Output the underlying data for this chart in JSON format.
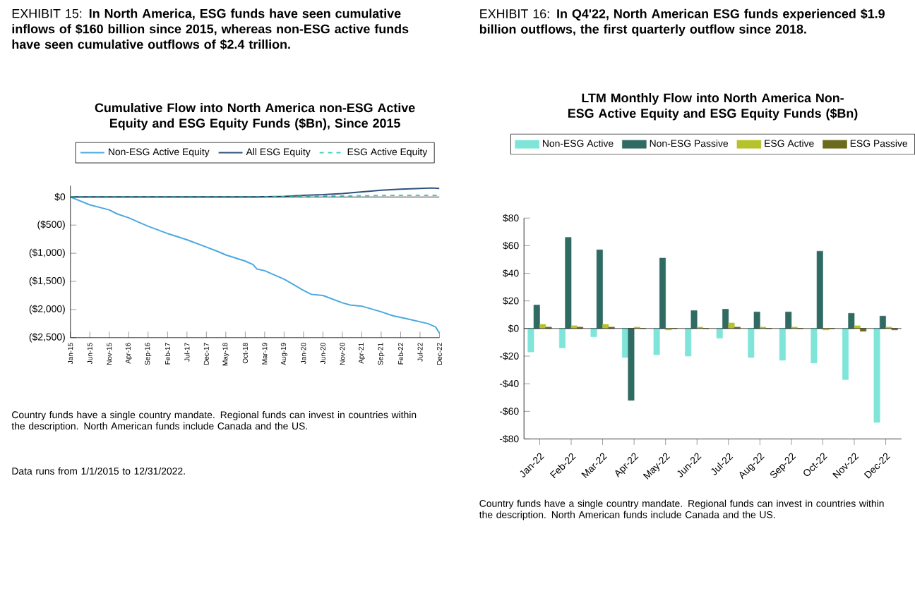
{
  "chart_data": [
    {
      "type": "line",
      "title": "EXHIBIT 15: **In North America, ESG funds have seen cumulative inflows of $160 billion since 2015, whereas non-ESG active funds have seen cumulative outflows of $2.4 trillion.**",
      "subtitle": "Cumulative Flow into North America non-ESG Active Equity and ESG Equity Funds ($Bn), Since 2015",
      "xlim": [
        "2015-01",
        "2022-12"
      ],
      "xticks": [
        {
          "value": "2015-01",
          "label": "Jan-15"
        },
        {
          "value": "2015-06",
          "label": "Jun-15"
        },
        {
          "value": "2015-11",
          "label": "Nov-15"
        },
        {
          "value": "2016-04",
          "label": "Apr-16"
        },
        {
          "value": "2016-09",
          "label": "Sep-16"
        },
        {
          "value": "2017-02",
          "label": "Feb-17"
        },
        {
          "value": "2017-07",
          "label": "Jul-17"
        },
        {
          "value": "2017-12",
          "label": "Dec-17"
        },
        {
          "value": "2018-05",
          "label": "May-18"
        },
        {
          "value": "2018-10",
          "label": "Oct-18"
        },
        {
          "value": "2019-03",
          "label": "Mar-19"
        },
        {
          "value": "2019-08",
          "label": "Aug-19"
        },
        {
          "value": "2020-01",
          "label": "Jan-20"
        },
        {
          "value": "2020-06",
          "label": "Jun-20"
        },
        {
          "value": "2020-11",
          "label": "Nov-20"
        },
        {
          "value": "2021-04",
          "label": "Apr-21"
        },
        {
          "value": "2021-09",
          "label": "Sep-21"
        },
        {
          "value": "2022-02",
          "label": "Feb-22"
        },
        {
          "value": "2022-07",
          "label": "Jul-22"
        },
        {
          "value": "2022-12",
          "label": "Dec-22"
        }
      ],
      "ylim": [
        -2500,
        200
      ],
      "yticks": [
        {
          "value": 0,
          "label": "$0"
        },
        {
          "value": -500,
          "label": "($500)"
        },
        {
          "value": -1000,
          "label": "($1,000)"
        },
        {
          "value": -1500,
          "label": "($1,500)"
        },
        {
          "value": -2000,
          "label": "($2,000)"
        },
        {
          "value": -2500,
          "label": "($2,500)"
        }
      ],
      "legend": "top",
      "ref_lines": [
        {
          "axis": "y",
          "value": 0
        }
      ],
      "series": [
        {
          "name": "Non-ESG Active Equity",
          "color": "#4aa8e0",
          "line_style": "solid",
          "x": [
            "2015-01",
            "2015-06",
            "2015-11",
            "2016-01",
            "2016-04",
            "2016-09",
            "2017-02",
            "2017-07",
            "2017-12",
            "2018-03",
            "2018-05",
            "2018-10",
            "2018-12",
            "2019-01",
            "2019-03",
            "2019-08",
            "2019-10",
            "2020-01",
            "2020-03",
            "2020-06",
            "2020-11",
            "2021-01",
            "2021-04",
            "2021-09",
            "2021-12",
            "2022-04",
            "2022-09",
            "2022-11",
            "2022-12"
          ],
          "values": [
            0,
            -140,
            -230,
            -300,
            -370,
            -520,
            -650,
            -760,
            -890,
            -970,
            -1030,
            -1140,
            -1200,
            -1280,
            -1310,
            -1460,
            -1540,
            -1660,
            -1730,
            -1750,
            -1880,
            -1920,
            -1940,
            -2040,
            -2110,
            -2170,
            -2250,
            -2310,
            -2420
          ]
        },
        {
          "name": "All ESG Equity",
          "color": "#2f4f7f",
          "line_style": "solid",
          "x": [
            "2015-01",
            "2019-01",
            "2019-08",
            "2020-01",
            "2020-06",
            "2020-11",
            "2021-04",
            "2021-09",
            "2022-02",
            "2022-07",
            "2022-10",
            "2022-12"
          ],
          "values": [
            0,
            0,
            10,
            30,
            40,
            60,
            90,
            120,
            140,
            150,
            160,
            150
          ]
        },
        {
          "name": "ESG Active Equity",
          "color": "#3fd0c0",
          "line_style": "dashed",
          "x": [
            "2015-01",
            "2019-01",
            "2020-01",
            "2021-01",
            "2022-01",
            "2022-12"
          ],
          "values": [
            0,
            0,
            10,
            20,
            30,
            30
          ]
        }
      ],
      "annotations": [
        "Country funds have a single country mandate. Regional funds can invest in countries within the description. North American funds include Canada and the US.",
        "Data runs from 1/1/2015 to 12/31/2022."
      ]
    },
    {
      "type": "bar",
      "title": "EXHIBIT 16: **In Q4'22, North American ESG funds experienced $1.9 billion outflows, the first quarterly outflow since 2018.**",
      "subtitle": "LTM Monthly Flow into North America Non-ESG Active Equity and ESG Equity Funds ($Bn)",
      "categories": [
        "Jan-22",
        "Feb-22",
        "Mar-22",
        "Apr-22",
        "May-22",
        "Jun-22",
        "Jul-22",
        "Aug-22",
        "Sep-22",
        "Oct-22",
        "Nov-22",
        "Dec-22"
      ],
      "ylim": [
        -80,
        80
      ],
      "yticks": [
        {
          "value": -80,
          "label": "-$80"
        },
        {
          "value": -60,
          "label": "-$60"
        },
        {
          "value": -40,
          "label": "-$40"
        },
        {
          "value": -20,
          "label": "-$20"
        },
        {
          "value": 0,
          "label": "$0"
        },
        {
          "value": 20,
          "label": "$20"
        },
        {
          "value": 40,
          "label": "$40"
        },
        {
          "value": 60,
          "label": "$60"
        },
        {
          "value": 80,
          "label": "$80"
        }
      ],
      "legend": "top",
      "ref_lines": [
        {
          "axis": "y",
          "value": 0
        }
      ],
      "series": [
        {
          "name": "Non-ESG Active",
          "color": "#7fe5d8",
          "values": [
            -17,
            -14,
            -6,
            -21,
            -19,
            -20,
            -7,
            -21,
            -23,
            -25,
            -37,
            -68
          ]
        },
        {
          "name": "Non-ESG Passive",
          "color": "#2f6b62",
          "values": [
            17,
            66,
            57,
            -52,
            51,
            13,
            14,
            12,
            12,
            56,
            11,
            9
          ]
        },
        {
          "name": "ESG Active",
          "color": "#b5c22a",
          "values": [
            3,
            2,
            3,
            1,
            -1,
            1,
            4,
            1,
            1,
            -1,
            2,
            1
          ]
        },
        {
          "name": "ESG Passive",
          "color": "#6b6b1e",
          "values": [
            1,
            1,
            1,
            0,
            0,
            0,
            1,
            0,
            0,
            0,
            -2,
            -1
          ]
        }
      ],
      "annotations": [
        "Country funds have a single country mandate. Regional funds can invest in countries within the description. North American funds include Canada and the US."
      ]
    }
  ]
}
